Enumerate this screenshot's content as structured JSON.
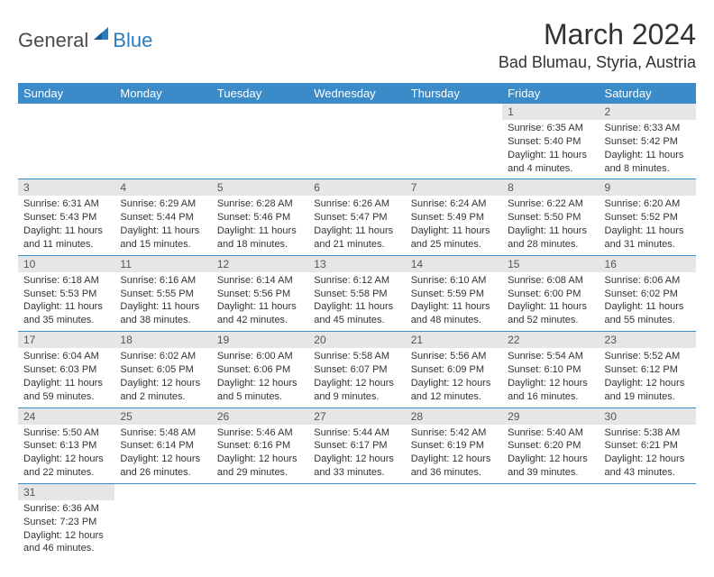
{
  "logo": {
    "general": "General",
    "blue": "Blue"
  },
  "title": "March 2024",
  "location": "Bad Blumau, Styria, Austria",
  "header_bg": "#3b8bc9",
  "header_fg": "#ffffff",
  "daynum_bg": "#e6e6e6",
  "row_divider": "#3b8bc9",
  "columns": [
    "Sunday",
    "Monday",
    "Tuesday",
    "Wednesday",
    "Thursday",
    "Friday",
    "Saturday"
  ],
  "weeks": [
    [
      null,
      null,
      null,
      null,
      null,
      {
        "n": "1",
        "sr": "6:35 AM",
        "ss": "5:40 PM",
        "dh": "11",
        "dm": "4"
      },
      {
        "n": "2",
        "sr": "6:33 AM",
        "ss": "5:42 PM",
        "dh": "11",
        "dm": "8"
      }
    ],
    [
      {
        "n": "3",
        "sr": "6:31 AM",
        "ss": "5:43 PM",
        "dh": "11",
        "dm": "11"
      },
      {
        "n": "4",
        "sr": "6:29 AM",
        "ss": "5:44 PM",
        "dh": "11",
        "dm": "15"
      },
      {
        "n": "5",
        "sr": "6:28 AM",
        "ss": "5:46 PM",
        "dh": "11",
        "dm": "18"
      },
      {
        "n": "6",
        "sr": "6:26 AM",
        "ss": "5:47 PM",
        "dh": "11",
        "dm": "21"
      },
      {
        "n": "7",
        "sr": "6:24 AM",
        "ss": "5:49 PM",
        "dh": "11",
        "dm": "25"
      },
      {
        "n": "8",
        "sr": "6:22 AM",
        "ss": "5:50 PM",
        "dh": "11",
        "dm": "28"
      },
      {
        "n": "9",
        "sr": "6:20 AM",
        "ss": "5:52 PM",
        "dh": "11",
        "dm": "31"
      }
    ],
    [
      {
        "n": "10",
        "sr": "6:18 AM",
        "ss": "5:53 PM",
        "dh": "11",
        "dm": "35"
      },
      {
        "n": "11",
        "sr": "6:16 AM",
        "ss": "5:55 PM",
        "dh": "11",
        "dm": "38"
      },
      {
        "n": "12",
        "sr": "6:14 AM",
        "ss": "5:56 PM",
        "dh": "11",
        "dm": "42"
      },
      {
        "n": "13",
        "sr": "6:12 AM",
        "ss": "5:58 PM",
        "dh": "11",
        "dm": "45"
      },
      {
        "n": "14",
        "sr": "6:10 AM",
        "ss": "5:59 PM",
        "dh": "11",
        "dm": "48"
      },
      {
        "n": "15",
        "sr": "6:08 AM",
        "ss": "6:00 PM",
        "dh": "11",
        "dm": "52"
      },
      {
        "n": "16",
        "sr": "6:06 AM",
        "ss": "6:02 PM",
        "dh": "11",
        "dm": "55"
      }
    ],
    [
      {
        "n": "17",
        "sr": "6:04 AM",
        "ss": "6:03 PM",
        "dh": "11",
        "dm": "59"
      },
      {
        "n": "18",
        "sr": "6:02 AM",
        "ss": "6:05 PM",
        "dh": "12",
        "dm": "2"
      },
      {
        "n": "19",
        "sr": "6:00 AM",
        "ss": "6:06 PM",
        "dh": "12",
        "dm": "5"
      },
      {
        "n": "20",
        "sr": "5:58 AM",
        "ss": "6:07 PM",
        "dh": "12",
        "dm": "9"
      },
      {
        "n": "21",
        "sr": "5:56 AM",
        "ss": "6:09 PM",
        "dh": "12",
        "dm": "12"
      },
      {
        "n": "22",
        "sr": "5:54 AM",
        "ss": "6:10 PM",
        "dh": "12",
        "dm": "16"
      },
      {
        "n": "23",
        "sr": "5:52 AM",
        "ss": "6:12 PM",
        "dh": "12",
        "dm": "19"
      }
    ],
    [
      {
        "n": "24",
        "sr": "5:50 AM",
        "ss": "6:13 PM",
        "dh": "12",
        "dm": "22"
      },
      {
        "n": "25",
        "sr": "5:48 AM",
        "ss": "6:14 PM",
        "dh": "12",
        "dm": "26"
      },
      {
        "n": "26",
        "sr": "5:46 AM",
        "ss": "6:16 PM",
        "dh": "12",
        "dm": "29"
      },
      {
        "n": "27",
        "sr": "5:44 AM",
        "ss": "6:17 PM",
        "dh": "12",
        "dm": "33"
      },
      {
        "n": "28",
        "sr": "5:42 AM",
        "ss": "6:19 PM",
        "dh": "12",
        "dm": "36"
      },
      {
        "n": "29",
        "sr": "5:40 AM",
        "ss": "6:20 PM",
        "dh": "12",
        "dm": "39"
      },
      {
        "n": "30",
        "sr": "5:38 AM",
        "ss": "6:21 PM",
        "dh": "12",
        "dm": "43"
      }
    ],
    [
      {
        "n": "31",
        "sr": "6:36 AM",
        "ss": "7:23 PM",
        "dh": "12",
        "dm": "46"
      },
      null,
      null,
      null,
      null,
      null,
      null
    ]
  ]
}
